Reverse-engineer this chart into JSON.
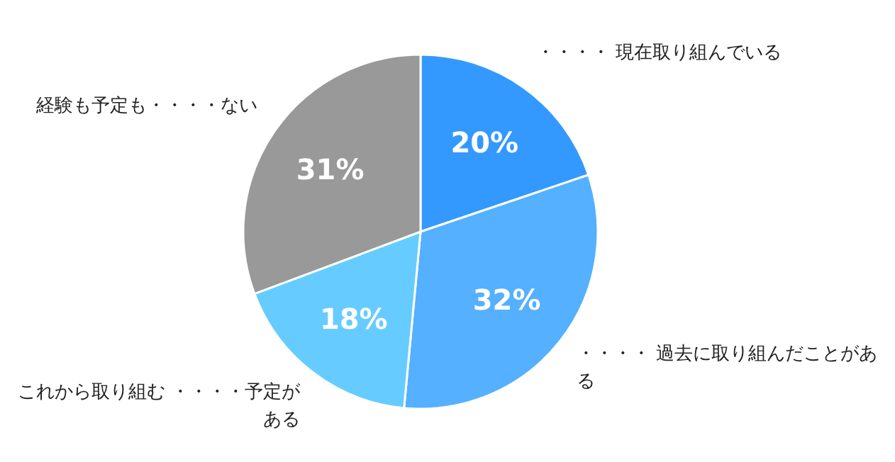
{
  "chart_data": {
    "type": "pie",
    "categories": [
      "・・・・ 現在取り組んでいる",
      "・・・・ 過去に取り組んだことがある",
      "これから取り組む ・・・・予定がある",
      "経験も予定も・・・・ない"
    ],
    "values": [
      20,
      32,
      18,
      31
    ],
    "value_labels": [
      "20%",
      "32%",
      "18%",
      "31%"
    ],
    "colors": [
      "#3399ff",
      "#55b0ff",
      "#66ccff",
      "#999999"
    ]
  }
}
